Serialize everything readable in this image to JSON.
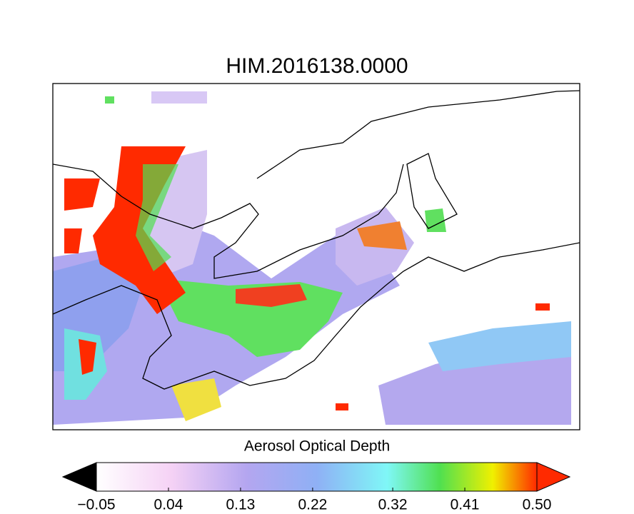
{
  "title": "HIM.2016138.0000",
  "colorbar": {
    "label": "Aerosol Optical Depth",
    "range": [
      -0.05,
      0.5
    ],
    "ticks": [
      {
        "value": -0.05,
        "label": "−0.05"
      },
      0.04,
      0.13,
      0.22,
      0.32,
      0.41,
      {
        "value": 0.5,
        "label": "0.50"
      }
    ]
  }
}
